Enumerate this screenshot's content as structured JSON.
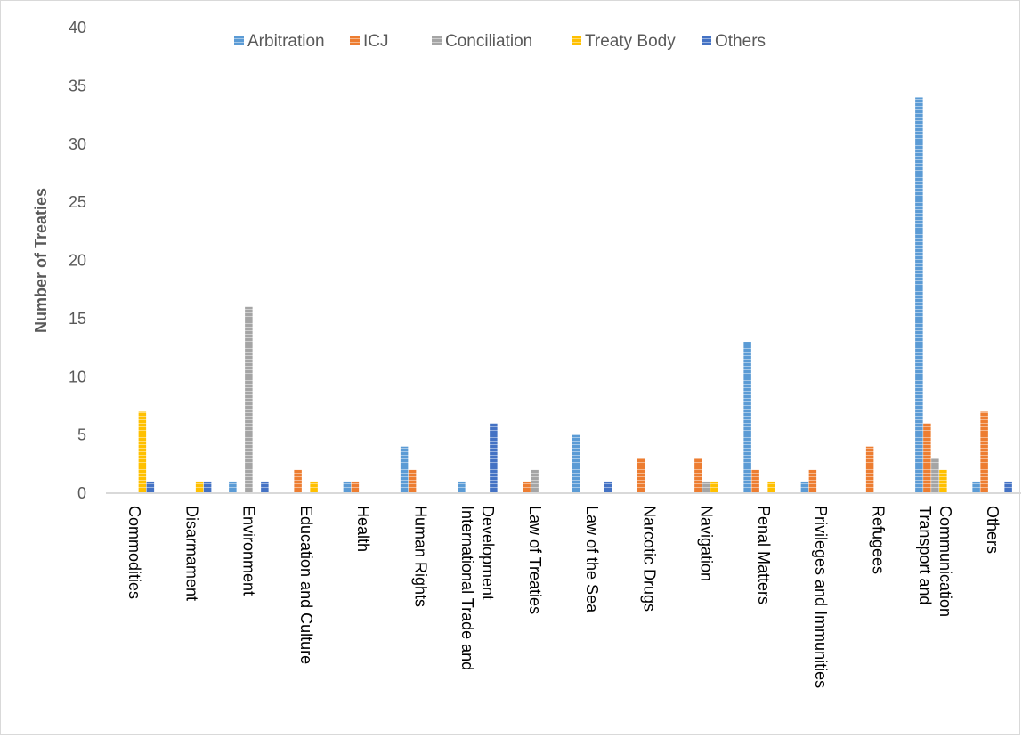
{
  "chart_data": {
    "type": "bar",
    "title": "",
    "xlabel": "",
    "ylabel": "Number of Treaties",
    "ylim": [
      0,
      40
    ],
    "yticks": [
      0,
      5,
      10,
      15,
      20,
      25,
      30,
      35,
      40
    ],
    "grid": false,
    "legend_position": "top",
    "categories": [
      [
        "Commodities"
      ],
      [
        "Disarmament"
      ],
      [
        "Environment"
      ],
      [
        "Education and Culture"
      ],
      [
        "Health"
      ],
      [
        "Human Rights"
      ],
      [
        "International Trade and",
        "Development"
      ],
      [
        "Law of Treaties"
      ],
      [
        "Law of the Sea"
      ],
      [
        "Narcotic Drugs"
      ],
      [
        "Navigation"
      ],
      [
        "Penal Matters"
      ],
      [
        "Privileges and Immunities"
      ],
      [
        "Refugees"
      ],
      [
        "Transport and",
        "Communication"
      ],
      [
        "Others"
      ]
    ],
    "series": [
      {
        "name": "Arbitration",
        "color": "#5b9bd5",
        "values": [
          0,
          0,
          1,
          0,
          1,
          4,
          1,
          0,
          5,
          0,
          0,
          13,
          1,
          0,
          34,
          1
        ]
      },
      {
        "name": "ICJ",
        "color": "#ed7d31",
        "values": [
          0,
          0,
          0,
          2,
          1,
          2,
          0,
          1,
          0,
          3,
          3,
          2,
          2,
          4,
          6,
          7
        ]
      },
      {
        "name": "Conciliation",
        "color": "#a5a5a5",
        "values": [
          0,
          0,
          16,
          0,
          0,
          0,
          0,
          2,
          0,
          0,
          1,
          0,
          0,
          0,
          3,
          0
        ]
      },
      {
        "name": "Treaty Body",
        "color": "#ffc000",
        "values": [
          7,
          1,
          0,
          1,
          0,
          0,
          0,
          0,
          0,
          0,
          1,
          1,
          0,
          0,
          2,
          0
        ]
      },
      {
        "name": "Others",
        "color": "#4472c4",
        "values": [
          1,
          1,
          1,
          0,
          0,
          0,
          6,
          0,
          1,
          0,
          0,
          0,
          0,
          0,
          0,
          1
        ]
      }
    ]
  }
}
